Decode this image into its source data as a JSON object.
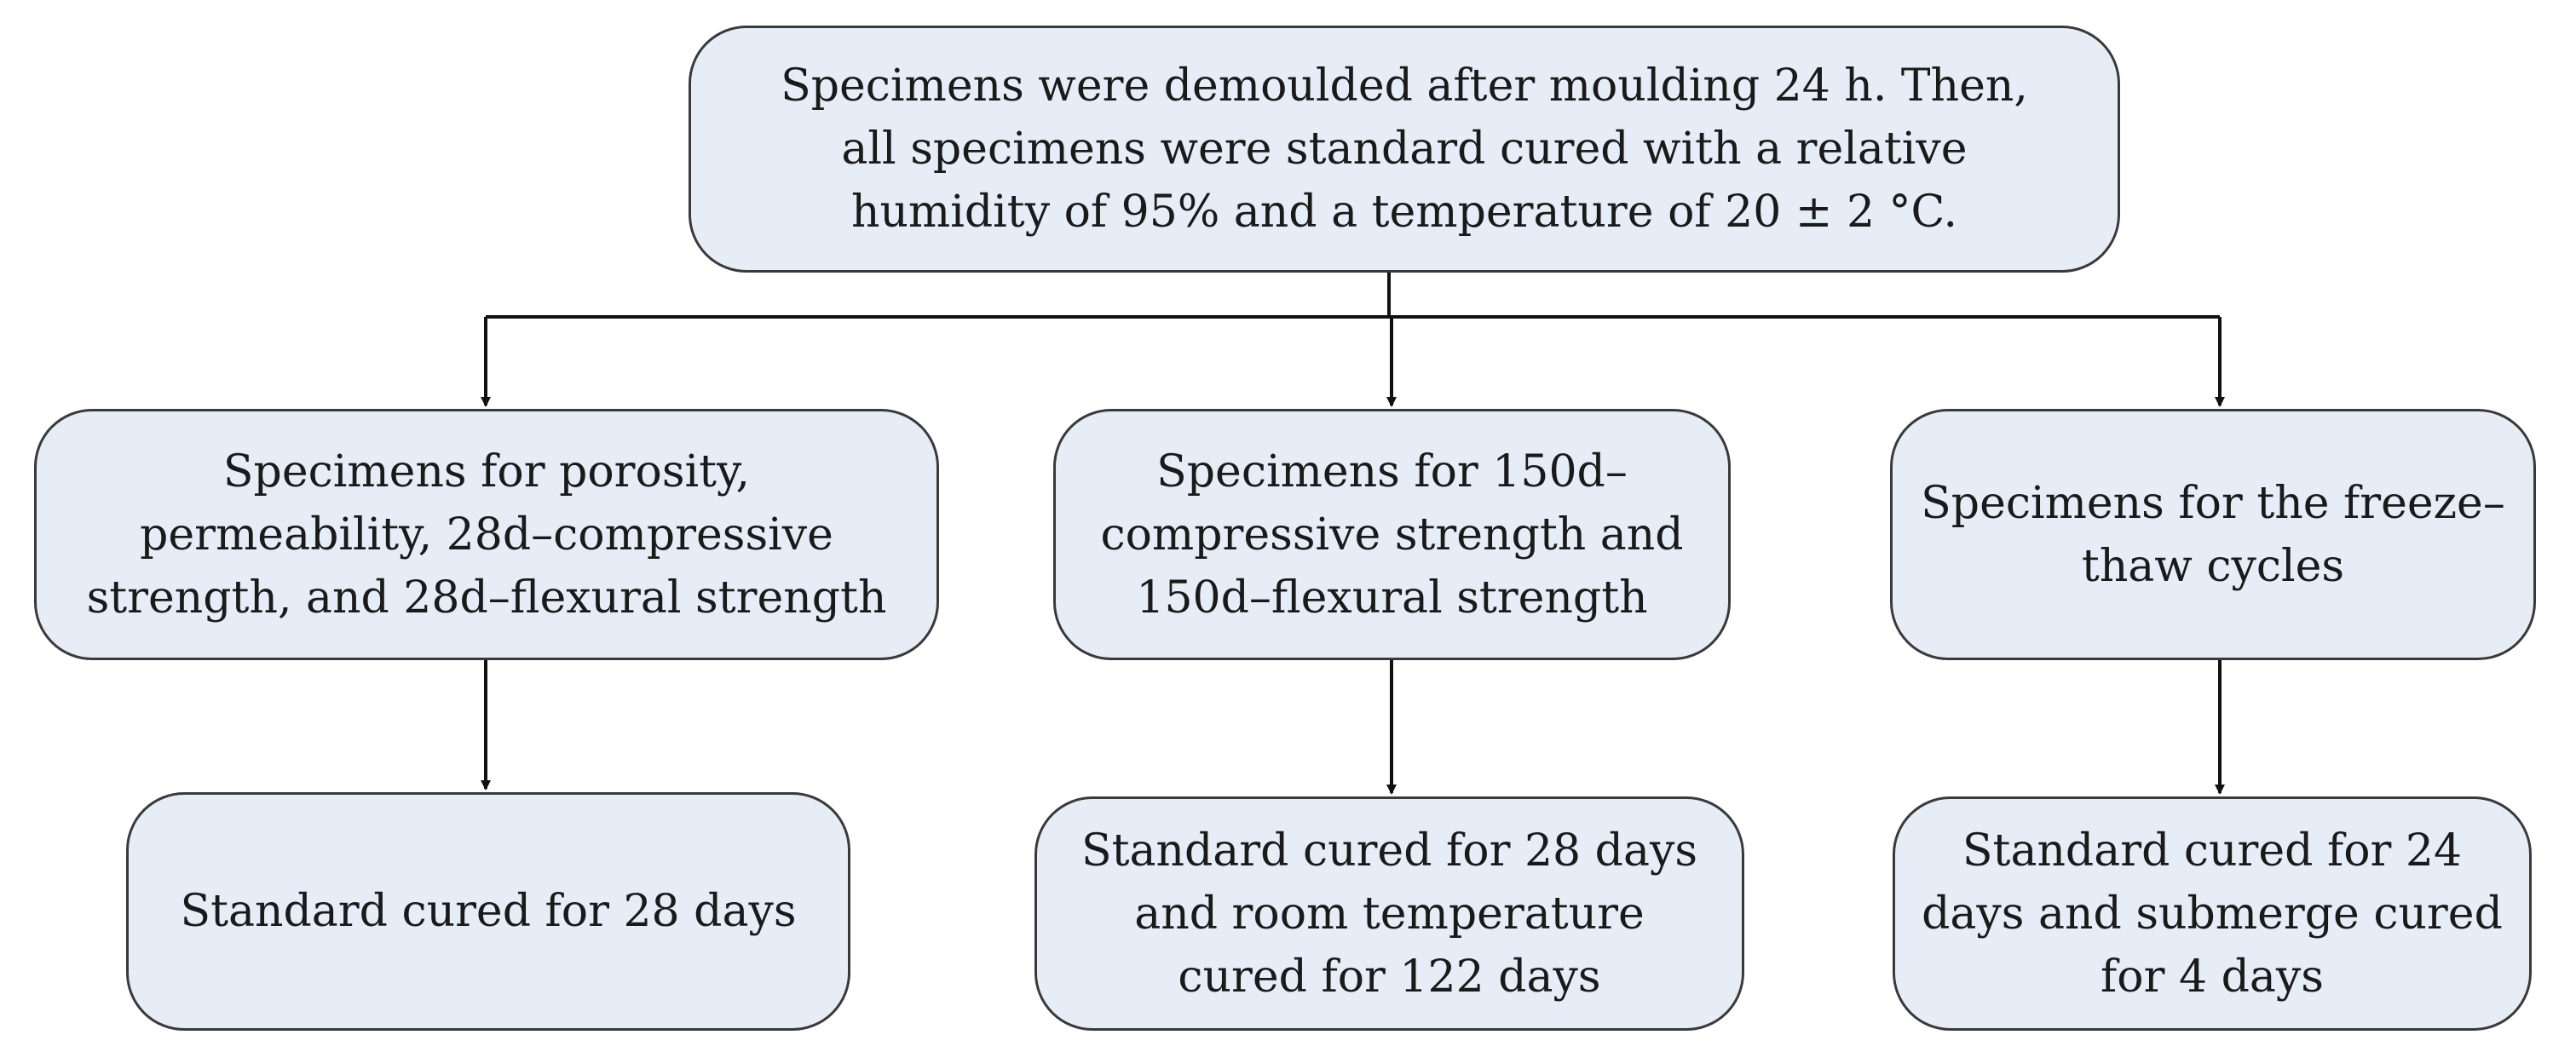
{
  "diagram": {
    "top_box": "Specimens were demoulded after moulding 24 h. Then,\nall specimens were standard cured with a relative\nhumidity of 95% and a temperature of 20 ± 2 °C.",
    "branches": [
      {
        "group": "Specimens for porosity,\npermeability, 28d–compressive\nstrength, and 28d–flexural strength",
        "curing": "Standard cured for 28 days"
      },
      {
        "group": "Specimens for 150d–\ncompressive strength and\n150d–flexural strength",
        "curing": "Standard cured for 28 days\nand room temperature\ncured for 122 days"
      },
      {
        "group": "Specimens for the freeze–\nthaw cycles",
        "curing": "Standard cured for 24\ndays and submerge cured\nfor 4 days"
      }
    ],
    "colors": {
      "box_fill": "#e6edf6",
      "box_border": "#3a3a3a",
      "connector": "#111111"
    }
  }
}
